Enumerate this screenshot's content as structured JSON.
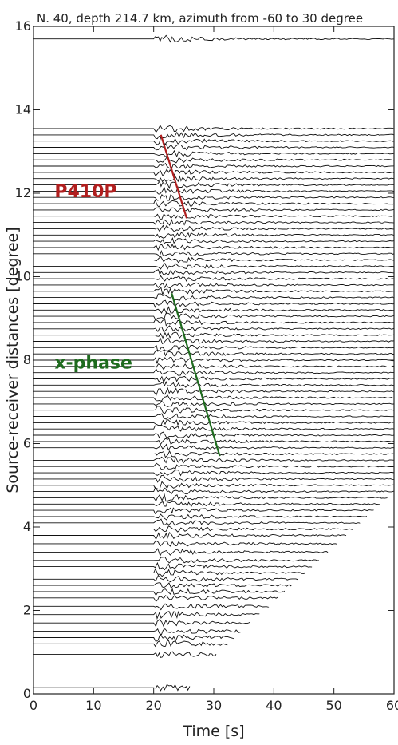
{
  "chart_data": {
    "type": "line",
    "title": "N. 40, depth 214.7 km, azimuth from -60 to 30 degree",
    "xlabel": "Time [s]",
    "ylabel": "Source-receiver distances [degree]",
    "xlim": [
      0,
      60
    ],
    "ylim": [
      0,
      16
    ],
    "xticks": [
      0,
      10,
      20,
      30,
      40,
      50,
      60
    ],
    "yticks": [
      0,
      2,
      4,
      6,
      8,
      10,
      12,
      14,
      16
    ],
    "grid": false,
    "trace_onset_s": 20,
    "phase_picks": [
      {
        "name": "P410P",
        "color": "#b01e1e",
        "x": [
          21.2,
          25.5
        ],
        "y": [
          13.4,
          11.4
        ]
      },
      {
        "name": "x-phase",
        "color": "#1e6b1e",
        "x": [
          23.0,
          31.0
        ],
        "y": [
          9.6,
          5.7
        ]
      }
    ],
    "phase_label_positions": [
      {
        "name": "P410P",
        "x": 3.5,
        "y": 11.9
      },
      {
        "name": "x-phase",
        "x": 3.5,
        "y": 7.8
      }
    ],
    "trace_distances_deg": [
      0.15,
      0.95,
      1.2,
      1.35,
      1.5,
      1.7,
      1.9,
      2.1,
      2.3,
      2.45,
      2.6,
      2.75,
      2.9,
      3.05,
      3.2,
      3.4,
      3.6,
      3.8,
      3.95,
      4.1,
      4.25,
      4.4,
      4.55,
      4.7,
      4.85,
      5.0,
      5.15,
      5.3,
      5.45,
      5.6,
      5.75,
      5.9,
      6.05,
      6.2,
      6.35,
      6.5,
      6.65,
      6.8,
      6.95,
      7.1,
      7.25,
      7.4,
      7.55,
      7.7,
      7.85,
      8.0,
      8.15,
      8.3,
      8.45,
      8.6,
      8.75,
      8.9,
      9.05,
      9.2,
      9.35,
      9.5,
      9.65,
      9.8,
      9.95,
      10.1,
      10.25,
      10.4,
      10.55,
      10.7,
      10.85,
      11.0,
      11.15,
      11.3,
      11.45,
      11.6,
      11.75,
      11.9,
      12.05,
      12.2,
      12.35,
      12.5,
      12.65,
      12.8,
      12.95,
      13.1,
      13.25,
      13.4,
      13.55,
      15.7
    ]
  }
}
